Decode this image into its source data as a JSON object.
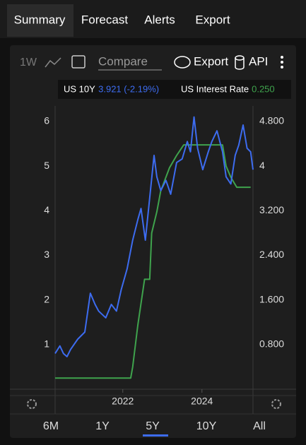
{
  "tabs": [
    "Summary",
    "Forecast",
    "Alerts",
    "Export"
  ],
  "toolbar": {
    "interval": "1W",
    "compare": "Compare",
    "export": "Export",
    "api": "API"
  },
  "readouts": [
    "3.921 (-2.19%)",
    "0.250"
  ],
  "ranges": [
    "6M",
    "1Y",
    "5Y",
    "10Y",
    "All"
  ],
  "chart_data": {
    "type": "line",
    "xlim": [
      2020.29,
      2025.29
    ],
    "xticks": [
      2022,
      2024
    ],
    "ylim": [
      0,
      6.3
    ],
    "yticks": [
      1,
      2,
      3,
      4,
      5,
      6
    ],
    "y2lim": [
      0,
      5.04
    ],
    "y2ticks": [
      {
        "value": 0.8,
        "label": "0.800"
      },
      {
        "value": 1.6,
        "label": "1.600"
      },
      {
        "value": 2.4,
        "label": "2.400"
      },
      {
        "value": 3.2,
        "label": "3.200"
      },
      4,
      {
        "value": 4.8,
        "label": "4.800"
      }
    ],
    "series": [
      {
        "name": "US 10Y",
        "color": "#3d6cf0",
        "x": [
          2020.29,
          2020.41,
          2020.5,
          2020.59,
          2020.68,
          2020.86,
          2021.04,
          2021.18,
          2021.3,
          2021.39,
          2021.57,
          2021.71,
          2021.84,
          2021.96,
          2022.11,
          2022.25,
          2022.38,
          2022.46,
          2022.57,
          2022.68,
          2022.79,
          2022.86,
          2022.96,
          2023.09,
          2023.21,
          2023.36,
          2023.5,
          2023.63,
          2023.71,
          2023.8,
          2023.89,
          2024.02,
          2024.16,
          2024.25,
          2024.38,
          2024.52,
          2024.61,
          2024.73,
          2024.84,
          2024.93,
          2025.04,
          2025.14,
          2025.23,
          2025.29
        ],
        "values": [
          0.8,
          0.97,
          0.8,
          0.73,
          0.89,
          1.12,
          1.28,
          2.15,
          1.9,
          1.75,
          1.6,
          1.9,
          1.75,
          2.23,
          2.7,
          3.34,
          3.8,
          4.05,
          3.34,
          4.29,
          5.24,
          4.76,
          4.45,
          4.68,
          4.37,
          5.08,
          5.16,
          5.55,
          5.32,
          6.1,
          5.4,
          4.92,
          5.32,
          5.55,
          5.79,
          5.32,
          4.76,
          4.6,
          5.24,
          5.47,
          5.92,
          5.4,
          5.32,
          4.92
        ]
      },
      {
        "name": "US Interest Rate",
        "color": "#3fa34d",
        "axis": "y2",
        "x": [
          2020.29,
          2022.2,
          2022.25,
          2022.38,
          2022.55,
          2022.68,
          2022.73,
          2022.86,
          2022.96,
          2023.09,
          2023.18,
          2023.36,
          2023.54,
          2024.52,
          2024.61,
          2024.73,
          2024.88,
          2025.23
        ],
        "values": [
          0.2,
          0.2,
          0.4,
          1.15,
          1.97,
          1.97,
          2.8,
          3.18,
          3.56,
          3.8,
          3.97,
          4.19,
          4.38,
          4.38,
          4,
          3.8,
          3.62,
          3.62
        ]
      }
    ]
  }
}
